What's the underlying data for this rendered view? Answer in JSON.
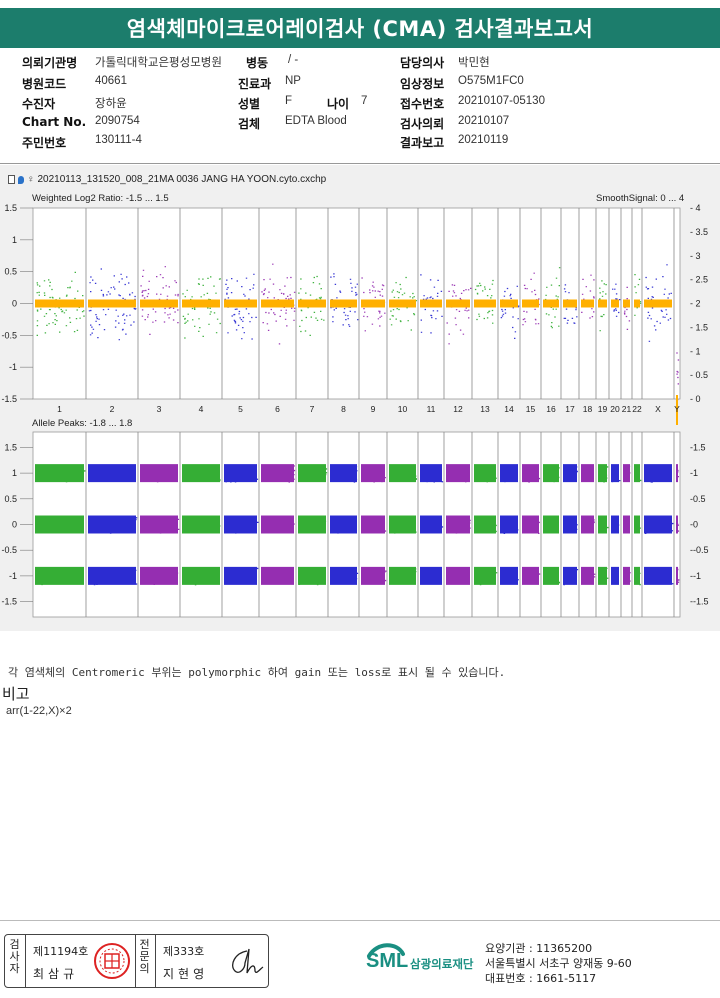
{
  "report": {
    "title": "염색체마이크로어레이검사 (CMA) 검사결과보고서"
  },
  "patient_info": {
    "institution_label": "의뢰기관명",
    "institution": "가톨릭대학교은평성모병원",
    "ward_label": "병동",
    "ward": "/ -",
    "doctor_label": "담당의사",
    "doctor": "박민현",
    "hospital_code_label": "병원코드",
    "hospital_code": "40661",
    "department_label": "진료과",
    "department": "NP",
    "clinical_label": "임상정보",
    "clinical": "O575M1FC0",
    "name_label": "수진자",
    "name": "장하윤",
    "sex_label": "성별",
    "sex": "F",
    "age_label": "나이",
    "age": "7",
    "receipt_label": "접수번호",
    "receipt": "20210107-05130",
    "chart_label": "Chart No.",
    "chart": "2090754",
    "specimen_label": "검체",
    "specimen": "EDTA Blood",
    "request_label": "검사의뢰",
    "request": "20210107",
    "id_label": "주민번호",
    "id": "130111-4",
    "result_label": "결과보고",
    "result": "20210119"
  },
  "plot": {
    "filename": "20210113_131520_008_21MA 0036 JANG HA YOON.cyto.cxchp",
    "top_title": "Weighted Log2 Ratio: -1.5 ... 1.5",
    "top_right_title": "SmoothSignal: 0 ... 4",
    "bottom_title": "Allele Peaks: -1.8 ... 1.8",
    "colors": {
      "green": "#1fa51f",
      "blue": "#1515cc",
      "purple": "#8a17a8",
      "orange": "#ffb000"
    }
  },
  "chart_data": [
    {
      "type": "scatter",
      "title": "Weighted Log2 Ratio: -1.5 ... 1.5",
      "secondary_title": "SmoothSignal: 0 ... 4",
      "ylim": [
        -1.5,
        1.5
      ],
      "y2lim": [
        0,
        4
      ],
      "yticks": [
        "1.5",
        "1",
        "0.5",
        "0",
        "-0.5",
        "-1",
        "-1.5"
      ],
      "y2ticks": [
        "4",
        "3.5",
        "3",
        "2.5",
        "2",
        "1.5",
        "1",
        "0.5",
        "0"
      ],
      "categories": [
        "1",
        "2",
        "3",
        "4",
        "5",
        "6",
        "7",
        "8",
        "9",
        "10",
        "11",
        "12",
        "13",
        "14",
        "15",
        "16",
        "17",
        "18",
        "19",
        "20",
        "21",
        "22",
        "X",
        "Y"
      ],
      "series": [
        {
          "values": [
            0,
            0,
            0,
            0,
            0,
            0,
            0,
            0,
            0,
            0,
            0,
            0,
            0,
            0,
            0,
            0,
            0,
            0,
            0,
            0,
            0,
            0,
            0,
            -1.2
          ]
        },
        {
          "values": [
            2,
            2,
            2,
            2,
            2,
            2,
            2,
            2,
            2,
            2,
            2,
            2,
            2,
            2,
            2,
            2,
            2,
            2,
            2,
            2,
            2,
            2,
            2,
            0
          ]
        }
      ]
    },
    {
      "type": "scatter",
      "title": "Allele Peaks: -1.8 ... 1.8",
      "ylim": [
        -1.8,
        1.8
      ],
      "yticks": [
        "1.5",
        "1",
        "0.5",
        "0",
        "-0.5",
        "-1",
        "-1.5"
      ],
      "categories": [
        "1",
        "2",
        "3",
        "4",
        "5",
        "6",
        "7",
        "8",
        "9",
        "10",
        "11",
        "12",
        "13",
        "14",
        "15",
        "16",
        "17",
        "18",
        "19",
        "20",
        "21",
        "22",
        "X",
        "Y"
      ],
      "series": [
        {
          "values": [
            1,
            0,
            -1
          ]
        }
      ]
    }
  ],
  "note": "각 염색체의 Centromeric 부위는 polymorphic 하여 gain 또는 loss로 표시 될 수 있습니다.",
  "remarks": {
    "title": "비고",
    "value": "arr(1-22,X)×2"
  },
  "signatures": {
    "examiner_label": "검사자",
    "examiner_no": "제11194호",
    "examiner_name": "최삼규",
    "specialist_label": "전문의",
    "specialist_no": "제333호",
    "specialist_name": "지현영"
  },
  "organization": {
    "logo_text": "SML",
    "name": "삼광의료재단",
    "care_label": "요양기관 : 11365200",
    "address": "서울특별시 서초구 양재동 9-60",
    "phone": "대표번호 : 1661-5117"
  }
}
